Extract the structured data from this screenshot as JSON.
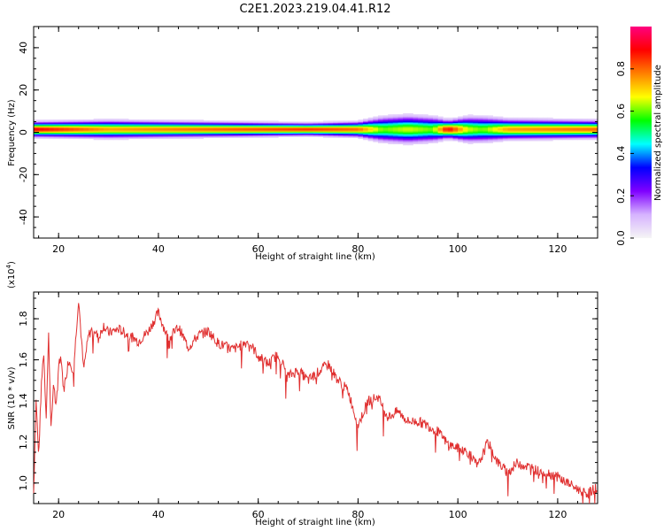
{
  "figure": {
    "title": "C2E1.2023.219.04.41.R12"
  },
  "chart_data": [
    {
      "type": "heatmap",
      "xlabel": "Height of straight line (km)",
      "ylabel": "Frequency (Hz)",
      "xlim": [
        15,
        128
      ],
      "ylim": [
        -50,
        50
      ],
      "xticks": [
        20,
        40,
        60,
        80,
        100,
        120
      ],
      "yticks": [
        -40,
        -20,
        0,
        20,
        40
      ],
      "colorbar": {
        "label": "Normalized spectral amplitude",
        "range": [
          0,
          1
        ],
        "ticks": [
          "0.0",
          "0.2",
          "0.4",
          "0.6",
          "0.8"
        ],
        "tick_values": [
          0,
          0.2,
          0.4,
          0.6,
          0.8
        ],
        "colors": [
          "#f5f5f5",
          "#d6b3ff",
          "#7f00ff",
          "#0000ff",
          "#00ffff",
          "#00ff00",
          "#ffff00",
          "#ff8000",
          "#ff0000",
          "#ff0080"
        ]
      },
      "ridge": {
        "center_hz": 1.5,
        "x": [
          15,
          30,
          50,
          70,
          80,
          85,
          90,
          95,
          98,
          102,
          105,
          110,
          128
        ],
        "amplitude": [
          0.9,
          0.75,
          0.8,
          0.85,
          0.8,
          0.6,
          0.65,
          0.6,
          0.9,
          0.65,
          0.6,
          0.75,
          0.8
        ],
        "halfwidth_hz": [
          3,
          3.5,
          3,
          2.5,
          3,
          5,
          5.5,
          5,
          3.5,
          5,
          5,
          4,
          3.5
        ]
      }
    },
    {
      "type": "line",
      "xlabel": "Height of straight line (km)",
      "ylabel": "SNR (10 * v/v)",
      "y_multiplier": "(x10",
      "y_multiplier_exp": "4",
      "y_multiplier_close": ")",
      "xlim": [
        15,
        128
      ],
      "ylim": [
        0.9,
        1.93
      ],
      "xticks": [
        20,
        40,
        60,
        80,
        100,
        120
      ],
      "yticks": [
        1.0,
        1.2,
        1.4,
        1.6,
        1.8
      ],
      "ytick_labels": [
        "1.0",
        "1.2",
        "1.4",
        "1.6",
        "1.8"
      ],
      "series": [
        {
          "color": "#e03030",
          "x": [
            15,
            15.5,
            16,
            16.5,
            17,
            17.5,
            18,
            18.5,
            19,
            19.5,
            20,
            20.5,
            21,
            22,
            23,
            24,
            25,
            26,
            27,
            28,
            29,
            30,
            32,
            34,
            36,
            38,
            40,
            42,
            44,
            46,
            48,
            50,
            52,
            55,
            58,
            60,
            62,
            64,
            66,
            68,
            70,
            72,
            74,
            76,
            78,
            80,
            82,
            84,
            86,
            88,
            90,
            92,
            94,
            96,
            98,
            100,
            102,
            104,
            106,
            108,
            110,
            112,
            114,
            116,
            118,
            120,
            122,
            124,
            126,
            128
          ],
          "y": [
            0.95,
            1.42,
            1.12,
            1.45,
            1.65,
            1.32,
            1.72,
            1.25,
            1.5,
            1.35,
            1.58,
            1.62,
            1.45,
            1.6,
            1.55,
            1.9,
            1.55,
            1.72,
            1.76,
            1.7,
            1.77,
            1.73,
            1.75,
            1.72,
            1.69,
            1.74,
            1.83,
            1.7,
            1.76,
            1.66,
            1.72,
            1.74,
            1.68,
            1.65,
            1.69,
            1.62,
            1.58,
            1.63,
            1.52,
            1.55,
            1.5,
            1.54,
            1.58,
            1.5,
            1.45,
            1.28,
            1.4,
            1.42,
            1.32,
            1.35,
            1.3,
            1.3,
            1.28,
            1.25,
            1.19,
            1.17,
            1.15,
            1.08,
            1.2,
            1.1,
            1.05,
            1.1,
            1.08,
            1.06,
            1.05,
            1.03,
            1.0,
            0.97,
            0.95,
            0.98
          ]
        }
      ]
    }
  ]
}
